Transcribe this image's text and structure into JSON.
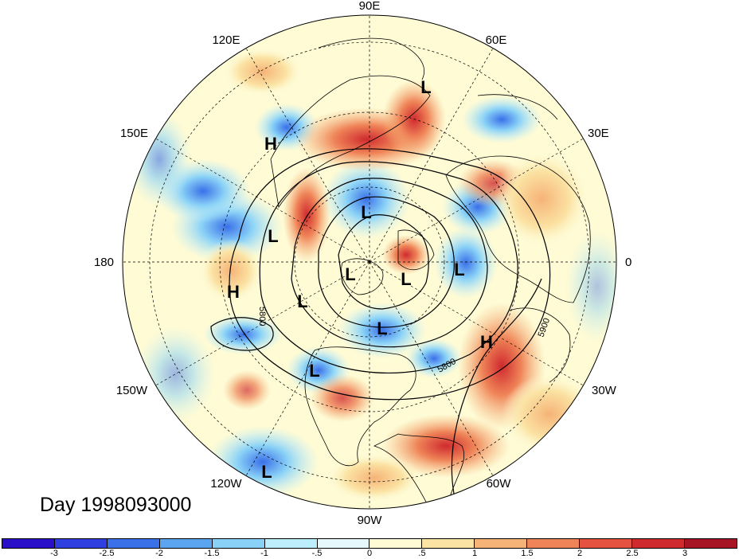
{
  "title": "Day 1998093000",
  "longitude_labels": [
    {
      "key": "90E",
      "text": "90E"
    },
    {
      "key": "60E",
      "text": "60E"
    },
    {
      "key": "30E",
      "text": "30E"
    },
    {
      "key": "0",
      "text": "0"
    },
    {
      "key": "30W",
      "text": "30W"
    },
    {
      "key": "60W",
      "text": "60W"
    },
    {
      "key": "90W",
      "text": "90W"
    },
    {
      "key": "120W",
      "text": "120W"
    },
    {
      "key": "150W",
      "text": "150W"
    },
    {
      "key": "180",
      "text": "180"
    },
    {
      "key": "150E",
      "text": "150E"
    },
    {
      "key": "120E",
      "text": "120E"
    }
  ],
  "pressure_centers": [
    {
      "label": "H"
    },
    {
      "label": "H"
    },
    {
      "label": "H"
    },
    {
      "label": "L"
    },
    {
      "label": "L"
    },
    {
      "label": "L"
    },
    {
      "label": "L"
    },
    {
      "label": "L"
    },
    {
      "label": "L"
    },
    {
      "label": "L"
    },
    {
      "label": "L"
    },
    {
      "label": "L"
    },
    {
      "label": "L"
    }
  ],
  "contour_labels": {
    "c5800_left": "5800",
    "c5800_right": "5800",
    "c5900": "5900"
  },
  "colorbar": {
    "colors": [
      "#2a10c8",
      "#2f3fe0",
      "#3a70e8",
      "#5aa4f0",
      "#89d1f7",
      "#bdeefb",
      "#e6f8fb",
      "#fefbd5",
      "#fbe3a4",
      "#f6b377",
      "#ef8458",
      "#e5523f",
      "#cf2a2e",
      "#a71525"
    ],
    "labels": [
      "-3",
      "-2.5",
      "-2",
      "-1.5",
      "-1",
      "-.5",
      "0",
      ".5",
      "1",
      "1.5",
      "2",
      "2.5",
      "3"
    ]
  }
}
